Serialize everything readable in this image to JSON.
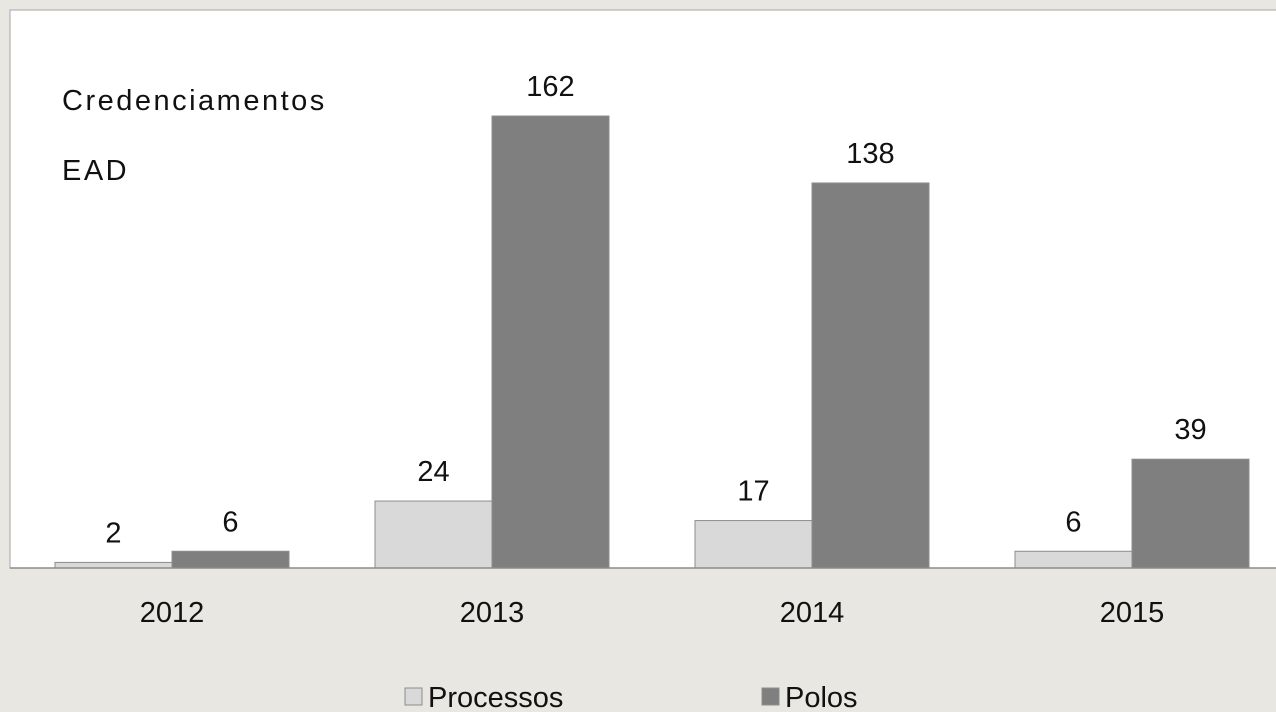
{
  "chart_data": {
    "type": "bar",
    "title": "Credenciamentos EAD",
    "categories": [
      "2012",
      "2013",
      "2014",
      "2015"
    ],
    "series": [
      {
        "name": "Processos",
        "color": "#d9d9d9",
        "values": [
          2,
          24,
          17,
          6
        ]
      },
      {
        "name": "Polos",
        "color": "#7f7f7f",
        "values": [
          6,
          162,
          138,
          39
        ]
      }
    ],
    "ylim": [
      0,
      200
    ]
  }
}
